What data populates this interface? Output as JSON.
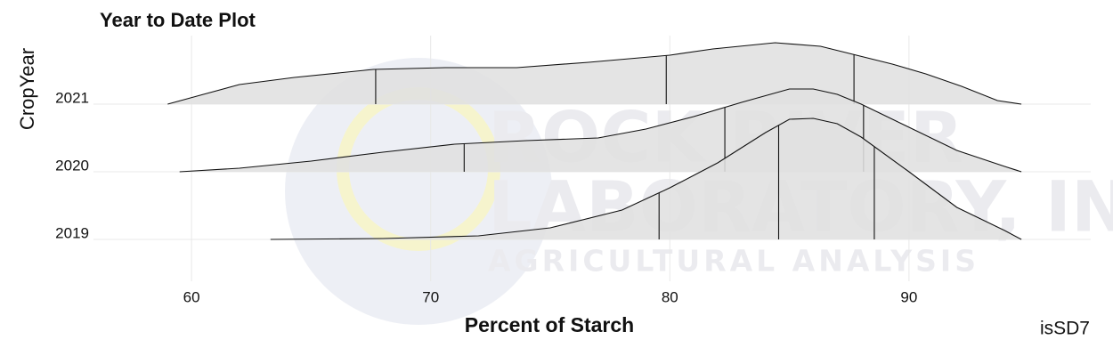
{
  "chart_data": {
    "type": "ridgeline",
    "title": "Year to Date Plot",
    "xlabel": "Percent of Starch",
    "ylabel": "CropYear",
    "caption": "isSD7",
    "watermark": [
      "ROCK RIVER",
      "LABORATORY, INC.",
      "AGRICULTURAL ANALYSIS"
    ],
    "xlim": [
      55.9,
      97.6
    ],
    "xticks": [
      60,
      70,
      80,
      90
    ],
    "grid": true,
    "fill": "#e0e0e0",
    "line_color": "#111111",
    "categories": [
      "2021",
      "2020",
      "2019"
    ],
    "series": [
      {
        "name": "2021",
        "x": [
          59.0,
          60.5,
          62.0,
          64.3,
          67.6,
          70.6,
          73.6,
          76.6,
          80.0,
          81.8,
          84.4,
          86.3,
          87.8,
          89.3,
          90.7,
          92.2,
          93.7,
          94.7
        ],
        "values": [
          0,
          0.0055,
          0.011,
          0.015,
          0.0195,
          0.0205,
          0.0205,
          0.0235,
          0.0275,
          0.031,
          0.0345,
          0.0325,
          0.0275,
          0.0225,
          0.017,
          0.01,
          0.002,
          0
        ],
        "quantiles": [
          67.7,
          79.85,
          87.7
        ]
      },
      {
        "name": "2020",
        "x": [
          59.5,
          62,
          65,
          68,
          71,
          74,
          77,
          79,
          81,
          83,
          85,
          86,
          87,
          88,
          90,
          92,
          94,
          94.7
        ],
        "values": [
          0,
          0.002,
          0.006,
          0.011,
          0.0155,
          0.0175,
          0.019,
          0.024,
          0.031,
          0.039,
          0.0465,
          0.0465,
          0.0435,
          0.038,
          0.025,
          0.012,
          0.003,
          0
        ],
        "quantiles": [
          71.4,
          82.3,
          88.1
        ]
      },
      {
        "name": "2019",
        "x": [
          63.3,
          68,
          72,
          75,
          78,
          80,
          82,
          84,
          85,
          86,
          87,
          88,
          90,
          92,
          94,
          94.7
        ],
        "values": [
          0,
          0.0005,
          0.002,
          0.0065,
          0.0165,
          0.029,
          0.043,
          0.06,
          0.0675,
          0.068,
          0.065,
          0.0575,
          0.038,
          0.018,
          0.005,
          0
        ],
        "quantiles": [
          79.55,
          84.55,
          88.55
        ]
      }
    ]
  }
}
